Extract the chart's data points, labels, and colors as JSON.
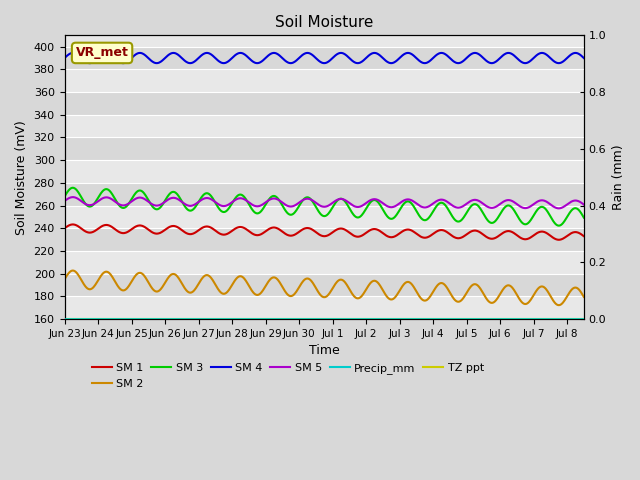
{
  "title": "Soil Moisture",
  "xlabel": "Time",
  "ylabel_left": "Soil Moisture (mV)",
  "ylabel_right": "Rain (mm)",
  "ylim_left": [
    160,
    410
  ],
  "ylim_right": [
    0.0,
    1.0
  ],
  "yticks_left": [
    160,
    180,
    200,
    220,
    240,
    260,
    280,
    300,
    320,
    340,
    360,
    380,
    400
  ],
  "yticks_right": [
    0.0,
    0.2,
    0.4,
    0.6,
    0.8,
    1.0
  ],
  "xtick_labels": [
    "Jun 23",
    "Jun 24",
    "Jun 25",
    "Jun 26",
    "Jun 27",
    "Jun 28",
    "Jun 29",
    "Jun 30",
    "Jul 1",
    "Jul 2",
    "Jul 3",
    "Jul 4",
    "Jul 5",
    "Jul 6",
    "Jul 7",
    "Jul 8"
  ],
  "annotation_text": "VR_met",
  "annotation_color": "#8B0000",
  "annotation_bg": "#ffffcc",
  "annotation_edge": "#999900",
  "bg_color": "#d8d8d8",
  "plot_bg_light": "#e8e8e8",
  "plot_bg_dark": "#d8d8d8",
  "grid_color": "#ffffff",
  "sm1_color": "#cc0000",
  "sm2_color": "#cc8800",
  "sm3_color": "#00cc00",
  "sm4_color": "#0000dd",
  "sm5_color": "#aa00cc",
  "precip_color": "#00cccc",
  "tz_color": "#cccc00",
  "legend_labels": [
    "SM 1",
    "SM 2",
    "SM 3",
    "SM 4",
    "SM 5",
    "Precip_mm",
    "TZ ppt"
  ],
  "sm1_base": 240,
  "sm1_trend": -0.45,
  "sm1_amp": 3.5,
  "sm2_base": 195,
  "sm2_trend": -1.0,
  "sm2_amp": 8.0,
  "sm3_base": 268,
  "sm3_trend": -1.2,
  "sm3_amp": 8.0,
  "sm4_base": 390,
  "sm4_trend": 0.0,
  "sm4_amp": 4.5,
  "sm5_base": 264,
  "sm5_trend": -0.2,
  "sm5_amp": 3.5,
  "period_days": 1.0,
  "n_days": 15.5
}
